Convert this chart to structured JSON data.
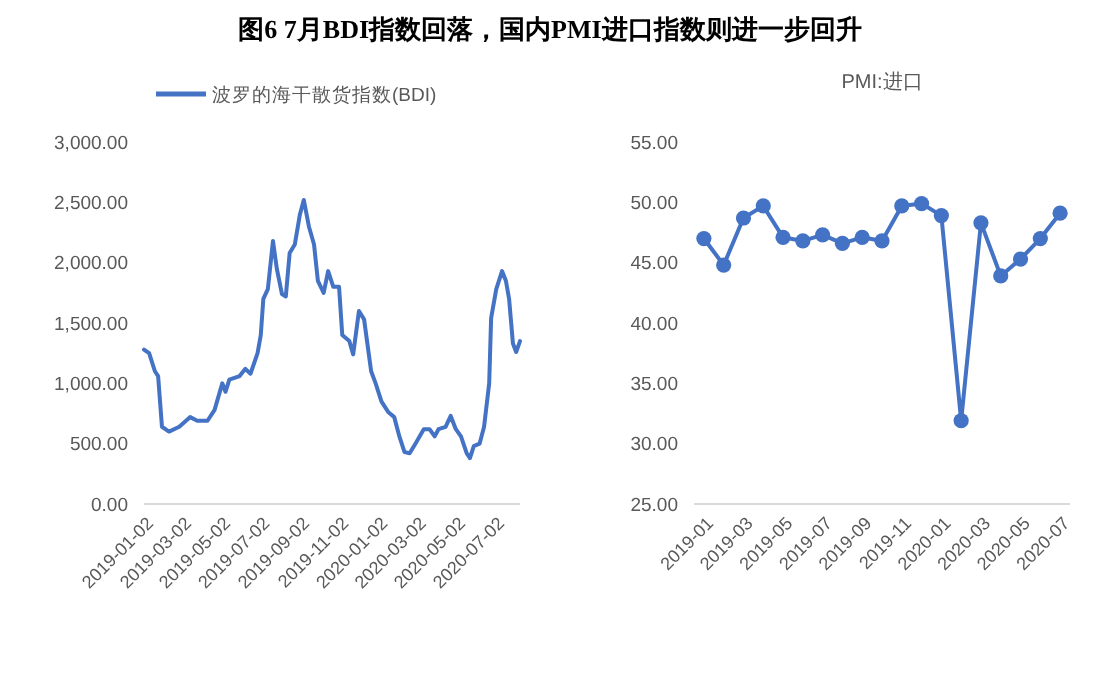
{
  "chart_data": [
    {
      "type": "line",
      "title": "图6  7月BDI指数回落，国内PMI进口指数则进一步回升",
      "legend": "top",
      "marker": "none",
      "line_style": "solid",
      "x": [
        "2019-01-02",
        "2019-01-10",
        "2019-01-19",
        "2019-01-24",
        "2019-01-30",
        "2019-02-10",
        "2019-02-26",
        "2019-03-15",
        "2019-03-26",
        "2019-04-11",
        "2019-04-22",
        "2019-05-04",
        "2019-05-09",
        "2019-05-15",
        "2019-05-31",
        "2019-06-09",
        "2019-06-17",
        "2019-06-28",
        "2019-07-03",
        "2019-07-07",
        "2019-07-14",
        "2019-07-22",
        "2019-07-28",
        "2019-08-05",
        "2019-08-11",
        "2019-08-17",
        "2019-08-25",
        "2019-09-02",
        "2019-09-08",
        "2019-09-16",
        "2019-09-24",
        "2019-09-30",
        "2019-10-09",
        "2019-10-16",
        "2019-10-24",
        "2019-11-02",
        "2019-11-07",
        "2019-11-18",
        "2019-11-24",
        "2019-12-03",
        "2019-12-11",
        "2019-12-22",
        "2019-12-29",
        "2020-01-07",
        "2020-01-18",
        "2020-01-27",
        "2020-02-04",
        "2020-02-12",
        "2020-02-20",
        "2020-02-29",
        "2020-03-13",
        "2020-03-22",
        "2020-03-30",
        "2020-04-05",
        "2020-04-16",
        "2020-04-24",
        "2020-05-02",
        "2020-05-10",
        "2020-05-19",
        "2020-05-24",
        "2020-05-30",
        "2020-06-08",
        "2020-06-15",
        "2020-06-23",
        "2020-06-26",
        "2020-07-04",
        "2020-07-13",
        "2020-07-19",
        "2020-07-24",
        "2020-07-30",
        "2020-08-04",
        "2020-08-10"
      ],
      "series": [
        {
          "name": "波罗的海干散货指数(BDI)",
          "color": "#4472c4",
          "values": [
            1280,
            1250,
            1100,
            1060,
            640,
            600,
            640,
            720,
            690,
            690,
            780,
            1000,
            930,
            1030,
            1060,
            1120,
            1080,
            1250,
            1400,
            1700,
            1780,
            2180,
            1950,
            1740,
            1720,
            2080,
            2150,
            2400,
            2520,
            2300,
            2150,
            1850,
            1750,
            1930,
            1800,
            1800,
            1400,
            1350,
            1240,
            1600,
            1530,
            1100,
            1000,
            850,
            760,
            720,
            560,
            430,
            420,
            500,
            620,
            620,
            560,
            620,
            640,
            730,
            620,
            560,
            420,
            380,
            480,
            500,
            640,
            1000,
            1540,
            1780,
            1930,
            1850,
            1700,
            1330,
            1260,
            1350
          ]
        }
      ],
      "xlim": [
        "2019-01-02",
        "2020-08-10"
      ],
      "xticks": [
        "2019-01-02",
        "2019-03-02",
        "2019-05-02",
        "2019-07-02",
        "2019-09-02",
        "2019-11-02",
        "2020-01-02",
        "2020-03-02",
        "2020-05-02",
        "2020-07-02"
      ],
      "ylim": [
        0,
        3000
      ],
      "yticks": [
        {
          "value": 0,
          "label": "0.00"
        },
        {
          "value": 500,
          "label": "500.00"
        },
        {
          "value": 1000,
          "label": "1,000.00"
        },
        {
          "value": 1500,
          "label": "1,500.00"
        },
        {
          "value": 2000,
          "label": "2,000.00"
        },
        {
          "value": 2500,
          "label": "2,500.00"
        },
        {
          "value": 3000,
          "label": "3,000.00"
        }
      ]
    },
    {
      "type": "line",
      "title": "PMI:进口",
      "marker": "circle",
      "line_style": "solid",
      "categories": [
        "2019-01",
        null,
        "2019-03",
        null,
        "2019-05",
        null,
        "2019-07",
        null,
        "2019-09",
        null,
        "2019-11",
        null,
        "2020-01",
        null,
        "2020-03",
        null,
        "2020-05",
        null,
        "2020-07"
      ],
      "series": [
        {
          "color": "#4472c4",
          "values": [
            47.0,
            44.8,
            48.7,
            49.7,
            47.1,
            46.8,
            47.3,
            46.6,
            47.1,
            46.8,
            49.7,
            49.9,
            48.9,
            31.9,
            48.3,
            43.9,
            45.3,
            47.0,
            49.1
          ]
        }
      ],
      "ylim": [
        25,
        55
      ],
      "yticks": [
        {
          "value": 25,
          "label": "25.00"
        },
        {
          "value": 30,
          "label": "30.00"
        },
        {
          "value": 35,
          "label": "35.00"
        },
        {
          "value": 40,
          "label": "40.00"
        },
        {
          "value": 45,
          "label": "45.00"
        },
        {
          "value": 50,
          "label": "50.00"
        },
        {
          "value": 55,
          "label": "55.00"
        }
      ]
    }
  ]
}
